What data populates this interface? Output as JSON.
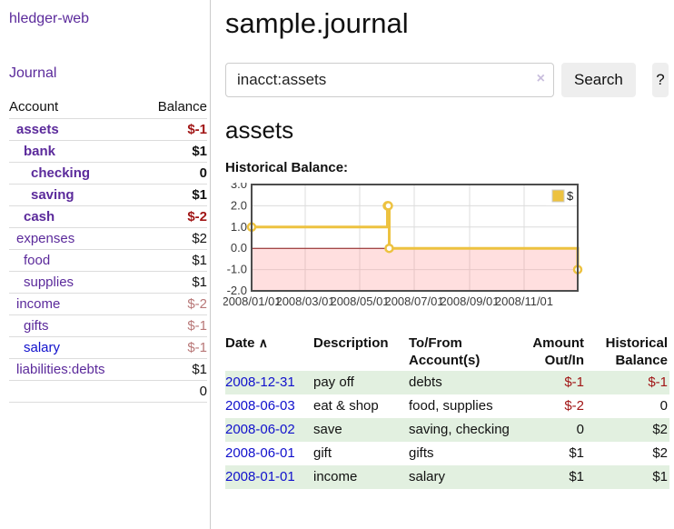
{
  "app": {
    "title": "hledger-web"
  },
  "sidebar": {
    "journal_link": "Journal",
    "accounts_table": {
      "headers": {
        "account": "Account",
        "balance": "Balance"
      },
      "rows": [
        {
          "name": "assets",
          "depth": 0,
          "bold": true,
          "unvisited": false,
          "balance": "$-1",
          "balance_class": "neg"
        },
        {
          "name": "bank",
          "depth": 1,
          "bold": true,
          "unvisited": false,
          "balance": "$1",
          "balance_class": ""
        },
        {
          "name": "checking",
          "depth": 2,
          "bold": true,
          "unvisited": false,
          "balance": "0",
          "balance_class": ""
        },
        {
          "name": "saving",
          "depth": 2,
          "bold": true,
          "unvisited": false,
          "balance": "$1",
          "balance_class": ""
        },
        {
          "name": "cash",
          "depth": 1,
          "bold": true,
          "unvisited": false,
          "balance": "$-2",
          "balance_class": "neg"
        },
        {
          "name": "expenses",
          "depth": 0,
          "bold": false,
          "unvisited": false,
          "balance": "$2",
          "balance_class": ""
        },
        {
          "name": "food",
          "depth": 1,
          "bold": false,
          "unvisited": false,
          "balance": "$1",
          "balance_class": ""
        },
        {
          "name": "supplies",
          "depth": 1,
          "bold": false,
          "unvisited": false,
          "balance": "$1",
          "balance_class": ""
        },
        {
          "name": "income",
          "depth": 0,
          "bold": false,
          "unvisited": false,
          "balance": "$-2",
          "balance_class": "negmuted"
        },
        {
          "name": "gifts",
          "depth": 1,
          "bold": false,
          "unvisited": false,
          "balance": "$-1",
          "balance_class": "negmuted"
        },
        {
          "name": "salary",
          "depth": 1,
          "bold": false,
          "unvisited": true,
          "balance": "$-1",
          "balance_class": "negmuted"
        },
        {
          "name": "liabilities:debts",
          "depth": 0,
          "bold": false,
          "unvisited": false,
          "balance": "$1",
          "balance_class": ""
        }
      ],
      "total": "0"
    }
  },
  "main": {
    "title": "sample.journal",
    "search": {
      "value": "inacct:assets",
      "clear_label": "×",
      "search_button": "Search",
      "help_button": "?"
    },
    "account_heading": "assets",
    "chart_label": "Historical Balance:",
    "transactions": {
      "headers": [
        "Date",
        "Description",
        "To/From Account(s)",
        "Amount Out/In",
        "Historical Balance"
      ],
      "sort_indicator": "∧",
      "rows": [
        {
          "date": "2008-12-31",
          "description": "pay off",
          "accounts": "debts",
          "amount": "$-1",
          "amount_negative": true,
          "balance": "$-1",
          "balance_negative": true
        },
        {
          "date": "2008-06-03",
          "description": "eat & shop",
          "accounts": "food, supplies",
          "amount": "$-2",
          "amount_negative": true,
          "balance": "0",
          "balance_negative": false
        },
        {
          "date": "2008-06-02",
          "description": "save",
          "accounts": "saving, checking",
          "amount": "0",
          "amount_negative": false,
          "balance": "$2",
          "balance_negative": false
        },
        {
          "date": "2008-06-01",
          "description": "gift",
          "accounts": "gifts",
          "amount": "$1",
          "amount_negative": false,
          "balance": "$2",
          "balance_negative": false
        },
        {
          "date": "2008-01-01",
          "description": "income",
          "accounts": "salary",
          "amount": "$1",
          "amount_negative": false,
          "balance": "$1",
          "balance_negative": false
        }
      ]
    }
  },
  "chart_data": {
    "type": "line",
    "title": "Historical Balance",
    "step": true,
    "x_range": [
      "2008-01-01",
      "2008-12-31"
    ],
    "ylim": [
      -2,
      3
    ],
    "y_ticks": [
      3.0,
      2.0,
      1.0,
      0.0,
      -1.0,
      -2.0
    ],
    "x_ticks": [
      "2008/01/01",
      "2008/03/01",
      "2008/05/01",
      "2008/07/01",
      "2008/09/01",
      "2008/11/01"
    ],
    "series": [
      {
        "name": "$",
        "color": "#edc240",
        "points": [
          [
            "2008-01-01",
            1
          ],
          [
            "2008-06-01",
            2
          ],
          [
            "2008-06-02",
            2
          ],
          [
            "2008-06-03",
            0
          ],
          [
            "2008-12-31",
            -1
          ]
        ]
      }
    ],
    "negative_region_color": "#ffdcdc",
    "zero_line_color": "#8b1a1a",
    "grid": true,
    "legend_position": "top-right"
  },
  "colors": {
    "accent_purple": "#5b2a9b",
    "link_blue": "#1111cc",
    "negative_strong": "#a11616",
    "negative_muted": "#b87777",
    "row_green": "#e2f0e0",
    "chart_line": "#edc240"
  }
}
